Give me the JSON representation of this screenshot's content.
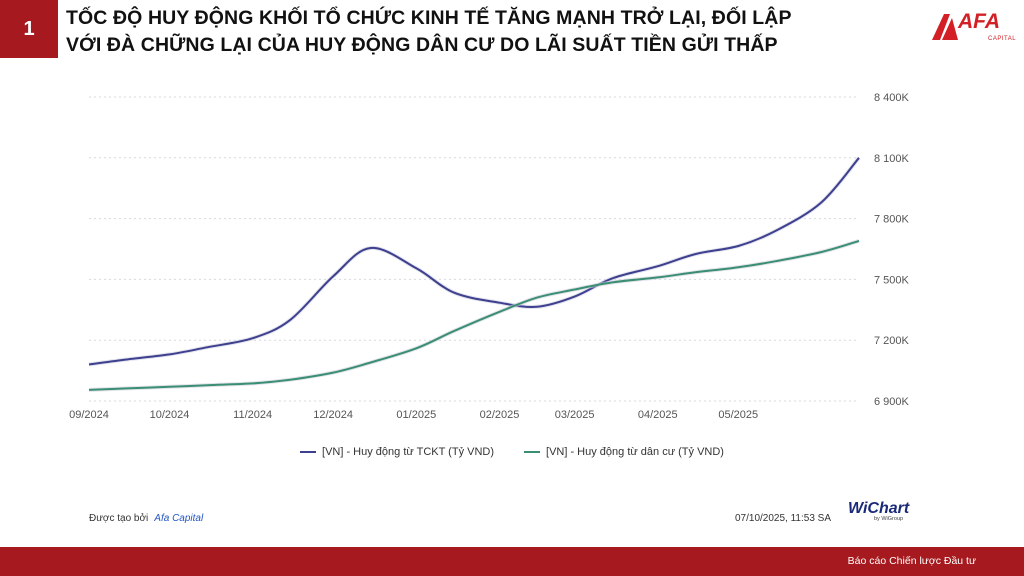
{
  "slide": {
    "number": "1"
  },
  "title": {
    "line1": "TỐC ĐỘ HUY ĐỘNG KHỐI TỔ CHỨC KINH TẾ TĂNG MẠNH TRỞ LẠI, ĐỐI LẬP",
    "line2": "VỚI ĐÀ CHỮNG LẠI CỦA HUY ĐỘNG DÂN CƯ DO LÃI SUẤT TIỀN GỬI THẤP"
  },
  "logo": {
    "text": "AFA",
    "sub": "CAPITAL",
    "color": "#d32027"
  },
  "attribution": {
    "created_by_label": "Được tạo bởi",
    "created_by_name": "Afa Capital",
    "date": "07/10/2025, 11:53 SA"
  },
  "wchart": {
    "name": "WiChart",
    "sub": "by WiGroup"
  },
  "footer": {
    "text": "Báo cáo Chiến lược Đầu tư",
    "color": "#a6191e"
  },
  "chart_data": {
    "type": "line",
    "x": [
      "2024-09-01",
      "2024-09-15",
      "2024-10-01",
      "2024-10-15",
      "2024-11-01",
      "2024-11-15",
      "2024-12-01",
      "2024-12-15",
      "2025-01-01",
      "2025-01-15",
      "2025-02-01",
      "2025-02-15",
      "2025-03-01",
      "2025-03-15",
      "2025-04-01",
      "2025-04-15",
      "2025-05-01",
      "2025-05-15",
      "2025-06-01",
      "2025-06-15"
    ],
    "x_ticks": [
      "09/2024",
      "10/2024",
      "11/2024",
      "12/2024",
      "01/2025",
      "02/2025",
      "03/2025",
      "04/2025",
      "05/2025"
    ],
    "y_ticks": [
      "6 900K",
      "7 200K",
      "7 500K",
      "7 800K",
      "8 100K",
      "8 400K"
    ],
    "ylim": [
      6900000,
      8400000
    ],
    "grid": true,
    "legend_position": "bottom",
    "series": [
      {
        "name": "[VN] - Huy động từ TCKT (Tỷ VND)",
        "color": "#3d3f8f",
        "values": [
          7080000,
          7105000,
          7130000,
          7165000,
          7210000,
          7300000,
          7515000,
          7655000,
          7555000,
          7435000,
          7385000,
          7365000,
          7415000,
          7505000,
          7565000,
          7625000,
          7665000,
          7740000,
          7880000,
          8100000
        ]
      },
      {
        "name": "[VN] - Huy động từ dân cư (Tỷ VND)",
        "color": "#3a8f72",
        "values": [
          6955000,
          6962000,
          6970000,
          6978000,
          6987000,
          7005000,
          7040000,
          7090000,
          7160000,
          7245000,
          7340000,
          7410000,
          7450000,
          7485000,
          7510000,
          7535000,
          7560000,
          7590000,
          7635000,
          7690000
        ]
      }
    ]
  }
}
